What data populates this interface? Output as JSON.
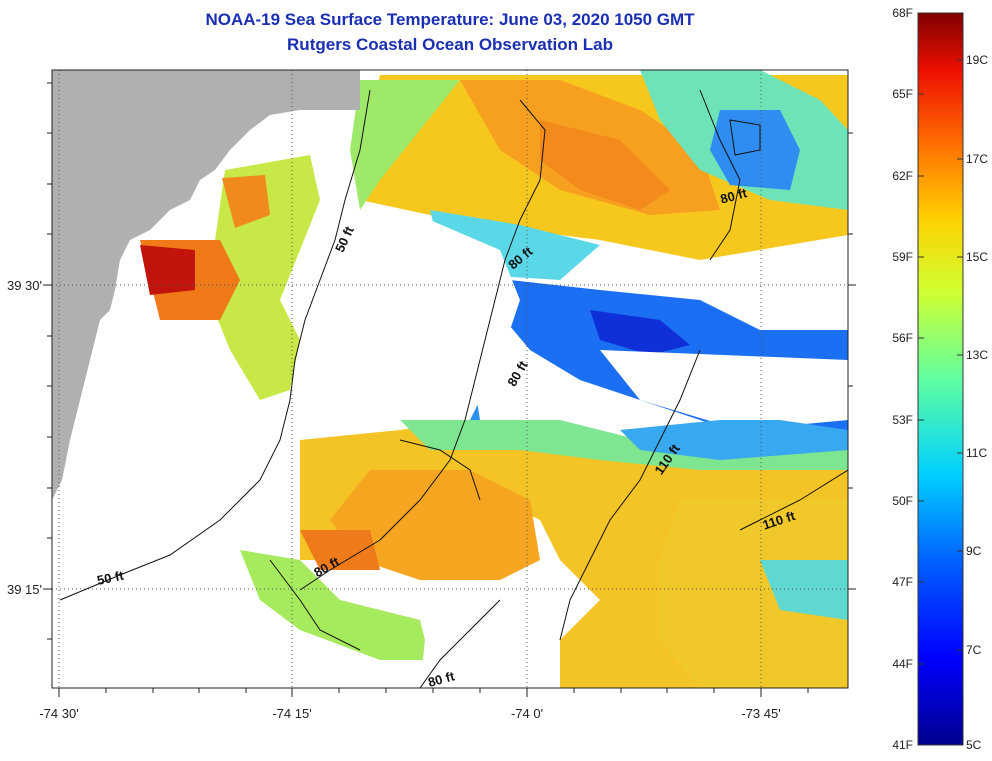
{
  "title": "NOAA-19 Sea Surface Temperature:  June 03, 2020 1050 GMT",
  "subtitle": "Rutgers Coastal Ocean Observation Lab",
  "map": {
    "lon_labels": [
      "-74 30'",
      "-74 15'",
      "-74 0'",
      "-73 45'"
    ],
    "lat_labels": [
      "39 30'",
      "39 15'"
    ],
    "contour_labels": [
      "50 ft",
      "80 ft",
      "80 ft",
      "80 ft",
      "110 ft",
      "110 ft",
      "50 ft",
      "80 ft",
      "80 ft"
    ]
  },
  "colorbar": {
    "fahrenheit_labels": [
      "68F",
      "65F",
      "62F",
      "59F",
      "56F",
      "53F",
      "50F",
      "47F",
      "44F",
      "41F"
    ],
    "celsius_labels": [
      "19C",
      "17C",
      "15C",
      "13C",
      "11C",
      "9C",
      "7C",
      "5C"
    ],
    "colors": [
      "#00008f",
      "#0000ff",
      "#0080ff",
      "#00ffff",
      "#80ff80",
      "#ffff00",
      "#ff8000",
      "#ff0000",
      "#800000"
    ]
  },
  "colors": {
    "land": "#b0b0b0",
    "no_data": "#ffffff",
    "title": "#1a2fb3"
  }
}
